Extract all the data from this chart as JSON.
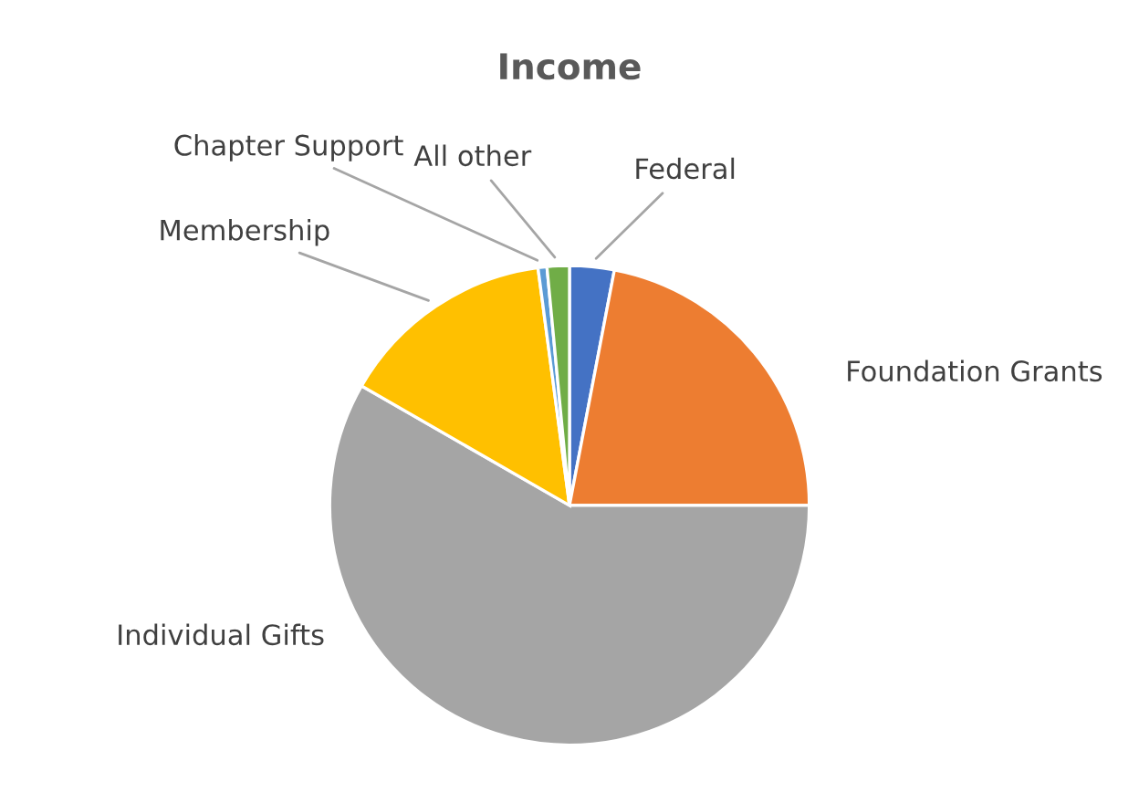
{
  "chart_data": {
    "type": "pie",
    "title": "Income",
    "categories": [
      "Federal",
      "Foundation Grants",
      "Individual Gifts",
      "Membership",
      "Chapter Support",
      "All other"
    ],
    "values": [
      3,
      22,
      58.3,
      14.6,
      0.6,
      1.5
    ],
    "colors": [
      "#4472c4",
      "#ed7d31",
      "#a5a5a5",
      "#ffc000",
      "#5b9bd5",
      "#70ad47"
    ],
    "legend": false
  }
}
